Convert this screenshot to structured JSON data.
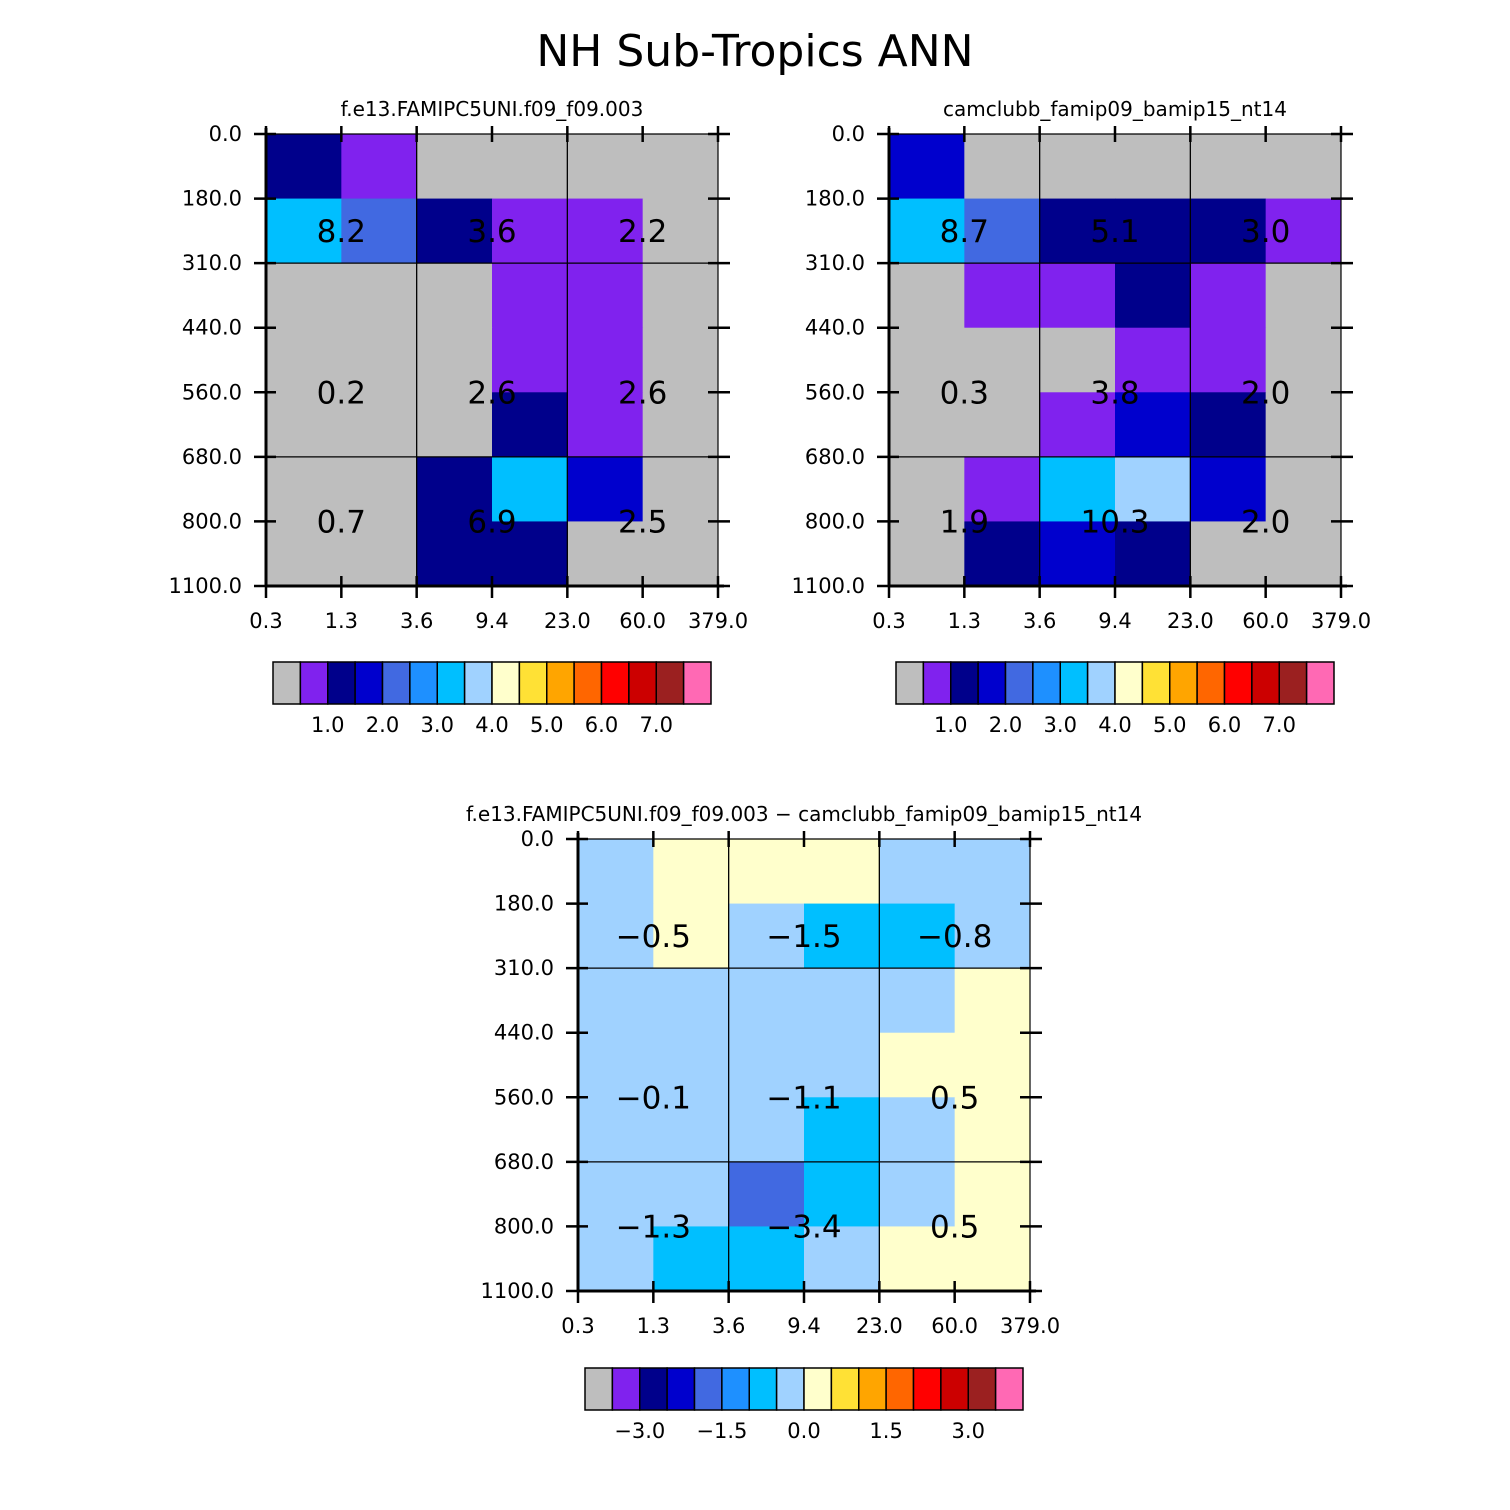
{
  "title": "NH Sub-Tropics ANN",
  "chart_data": {
    "type": "heatmap",
    "y_levels": [
      "0.0",
      "180.0",
      "310.0",
      "440.0",
      "560.0",
      "680.0",
      "800.0",
      "1100.0"
    ],
    "x_levels": [
      "0.3",
      "1.3",
      "3.6",
      "9.4",
      "23.0",
      "60.0",
      "379.0"
    ],
    "panels": [
      {
        "name": "model-a",
        "title": "f.e13.FAMIPC5UNI.f09_f09.003",
        "cells": [
          [
            2,
            1,
            0,
            0,
            0,
            0
          ],
          [
            6,
            4,
            2,
            1,
            1,
            0
          ],
          [
            0,
            0,
            0,
            1,
            1,
            0
          ],
          [
            0,
            0,
            0,
            1,
            1,
            0
          ],
          [
            0,
            0,
            0,
            2,
            1,
            0
          ],
          [
            0,
            0,
            2,
            6,
            3,
            0
          ],
          [
            0,
            0,
            2,
            2,
            0,
            0
          ]
        ],
        "box_values": [
          [
            "8.2",
            "3.6",
            "2.2"
          ],
          [
            "0.2",
            "2.6",
            "2.6"
          ],
          [
            "0.7",
            "6.9",
            "2.5"
          ]
        ],
        "colorbar_labels": [
          "1.0",
          "2.0",
          "3.0",
          "4.0",
          "5.0",
          "6.0",
          "7.0"
        ]
      },
      {
        "name": "model-b",
        "title": "camclubb_famip09_bamip15_nt14",
        "cells": [
          [
            3,
            0,
            0,
            0,
            0,
            0
          ],
          [
            6,
            4,
            2,
            2,
            2,
            1
          ],
          [
            0,
            1,
            1,
            2,
            1,
            0
          ],
          [
            0,
            0,
            0,
            1,
            1,
            0
          ],
          [
            0,
            0,
            1,
            3,
            2,
            0
          ],
          [
            0,
            1,
            6,
            7,
            3,
            0
          ],
          [
            0,
            2,
            3,
            2,
            0,
            0
          ]
        ],
        "box_values": [
          [
            "8.7",
            "5.1",
            "3.0"
          ],
          [
            "0.3",
            "3.8",
            "2.0"
          ],
          [
            "1.9",
            "10.3",
            "2.0"
          ]
        ],
        "colorbar_labels": [
          "1.0",
          "2.0",
          "3.0",
          "4.0",
          "5.0",
          "6.0",
          "7.0"
        ]
      },
      {
        "name": "difference",
        "title": "f.e13.FAMIPC5UNI.f09_f09.003 − camclubb_famip09_bamip15_nt14",
        "cells": [
          [
            7,
            8,
            8,
            8,
            7,
            7
          ],
          [
            7,
            8,
            7,
            6,
            6,
            7
          ],
          [
            7,
            7,
            7,
            7,
            7,
            8
          ],
          [
            7,
            7,
            7,
            7,
            8,
            8
          ],
          [
            7,
            7,
            7,
            6,
            7,
            8
          ],
          [
            7,
            7,
            4,
            6,
            7,
            8
          ],
          [
            7,
            6,
            6,
            7,
            8,
            8
          ]
        ],
        "box_values": [
          [
            "−0.5",
            "−1.5",
            "−0.8"
          ],
          [
            "−0.1",
            "−1.1",
            "0.5"
          ],
          [
            "−1.3",
            "−3.4",
            "0.5"
          ]
        ],
        "colorbar_labels": [
          "−3.0",
          "−1.5",
          "0.0",
          "1.5",
          "3.0"
        ]
      }
    ],
    "palette": [
      "#bebebe",
      "#8022ee",
      "#00008b",
      "#0000cd",
      "#4169e1",
      "#1e90ff",
      "#00bfff",
      "#a0d2ff",
      "#ffffcc",
      "#ffe135",
      "#ffa500",
      "#ff6600",
      "#ff0000",
      "#cc0000",
      "#9b2020",
      "#ff69b4"
    ]
  }
}
